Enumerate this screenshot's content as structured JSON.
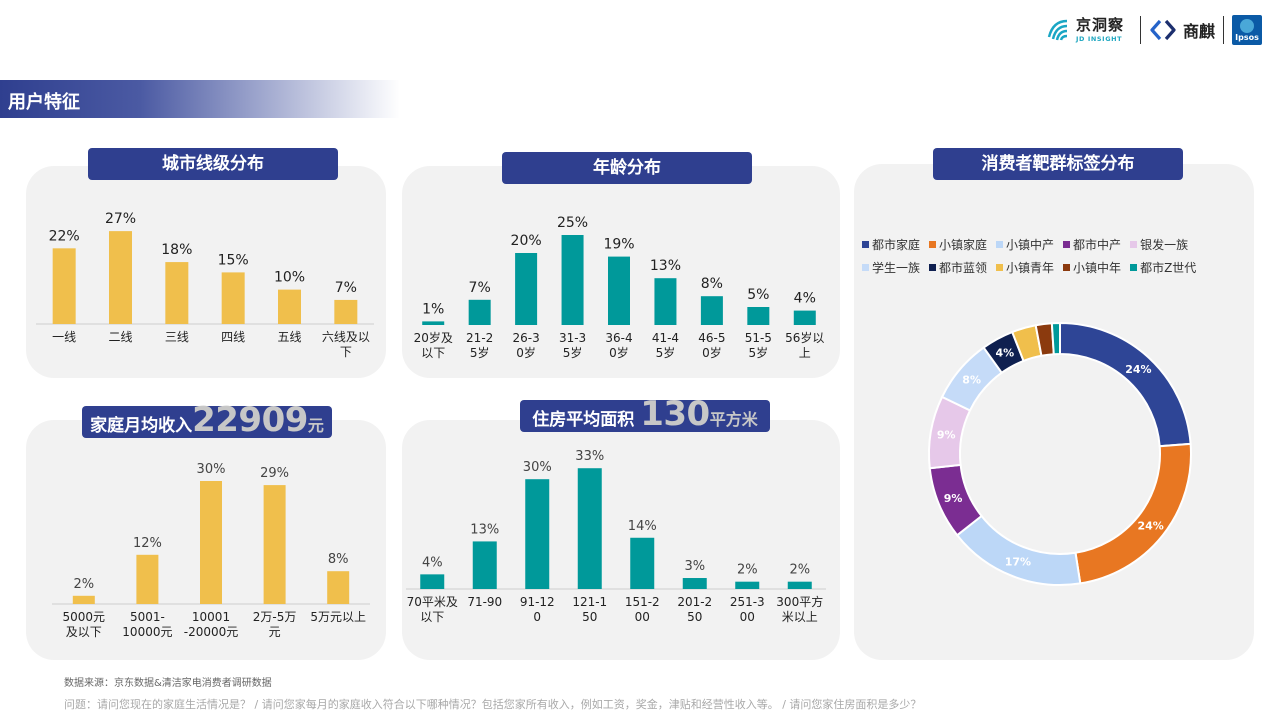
{
  "header": {
    "jd_insight_cn": "京洞察",
    "jd_insight_en": "JD INSIGHT",
    "shangqi": "商麒",
    "ipsos": "Ipsos"
  },
  "section": {
    "title": "用户特征"
  },
  "panels": {
    "city": {
      "title": "城市线级分布"
    },
    "age": {
      "title": "年龄分布"
    },
    "target": {
      "title": "消费者靶群标签分布"
    },
    "income": {
      "title_prefix": "家庭月均收入",
      "value": "22909",
      "unit": "元"
    },
    "housing": {
      "title_prefix": "住房平均面积",
      "value": "130",
      "unit": "平方米"
    }
  },
  "footer": {
    "source": "数据来源：京东数据&清洁家电消费者调研数据",
    "question": "问题：请问您现在的家庭生活情况是？ / 请问您家每月的家庭收入符合以下哪种情况？包括您家所有收入，例如工资，奖金，津贴和经营性收入等。 / 请问您家住房面积是多少？"
  },
  "colors": {
    "yellow": "#f0bf4c",
    "teal": "#00999a",
    "navy": "#2f3f8f",
    "panel_bg": "#f2f2f2"
  },
  "chart_data": [
    {
      "id": "city",
      "type": "bar",
      "categories": [
        "一线",
        "二线",
        "三线",
        "四线",
        "五线",
        "六线及以下"
      ],
      "values": [
        22,
        27,
        18,
        15,
        10,
        7
      ],
      "labels": [
        "22%",
        "27%",
        "18%",
        "15%",
        "10%",
        "7%"
      ],
      "color": "#f0bf4c"
    },
    {
      "id": "age",
      "type": "bar",
      "categories": [
        "20岁及以下",
        "21-25岁",
        "26-30岁",
        "31-35岁",
        "36-40岁",
        "41-45岁",
        "46-50岁",
        "51-55岁",
        "56岁以上"
      ],
      "values": [
        1,
        7,
        20,
        25,
        19,
        13,
        8,
        5,
        4
      ],
      "labels": [
        "1%",
        "7%",
        "20%",
        "25%",
        "19%",
        "13%",
        "8%",
        "5%",
        "4%"
      ],
      "color": "#00999a"
    },
    {
      "id": "income",
      "type": "bar",
      "categories": [
        "5000元及以下",
        "5001-10000元",
        "10001-20000元",
        "2万-5万元",
        "5万元以上"
      ],
      "values": [
        2,
        12,
        30,
        29,
        8
      ],
      "labels": [
        "2%",
        "12%",
        "30%",
        "29%",
        "8%"
      ],
      "color": "#f0bf4c"
    },
    {
      "id": "housing",
      "type": "bar",
      "categories": [
        "70平米及以下",
        "71-90",
        "91-120",
        "121-150",
        "151-200",
        "201-250",
        "251-300",
        "300平方米以上"
      ],
      "values": [
        4,
        13,
        30,
        33,
        14,
        3,
        2,
        2
      ],
      "labels": [
        "4%",
        "13%",
        "30%",
        "33%",
        "14%",
        "3%",
        "2%",
        "2%"
      ],
      "color": "#00999a"
    },
    {
      "id": "target",
      "type": "pie",
      "donut": true,
      "legend_position": "top",
      "series": [
        {
          "name": "都市家庭",
          "value": 24,
          "label": "24%",
          "color": "#2e4596"
        },
        {
          "name": "小镇家庭",
          "value": 24,
          "label": "24%",
          "color": "#e87722"
        },
        {
          "name": "小镇中产",
          "value": 17,
          "label": "17%",
          "color": "#bcd7f7"
        },
        {
          "name": "都市中产",
          "value": 9,
          "label": "9%",
          "color": "#7b2d92"
        },
        {
          "name": "银发一族",
          "value": 9,
          "label": "9%",
          "color": "#e6c8e9"
        },
        {
          "name": "学生一族",
          "value": 8,
          "label": "8%",
          "color": "#c5dbf8"
        },
        {
          "name": "都市蓝领",
          "value": 4,
          "label": "4%",
          "color": "#0f2050"
        },
        {
          "name": "小镇青年",
          "value": 3,
          "label": "",
          "color": "#f0bf4c"
        },
        {
          "name": "小镇中年",
          "value": 2,
          "label": "",
          "color": "#8b3a0e"
        },
        {
          "name": "都市Z世代",
          "value": 1,
          "label": "",
          "color": "#00999a"
        }
      ]
    }
  ]
}
